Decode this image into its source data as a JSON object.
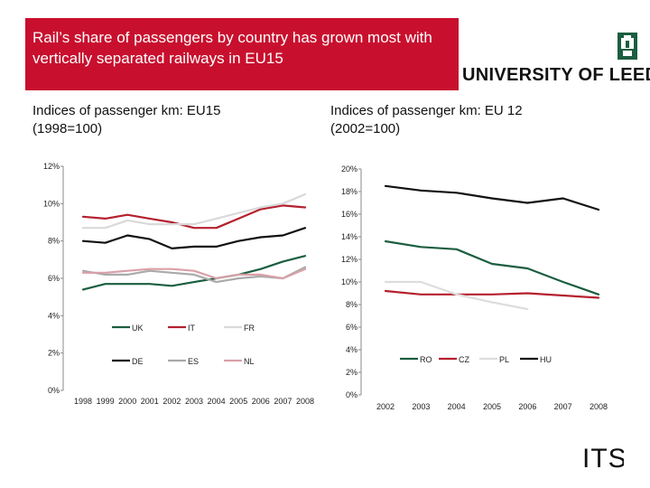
{
  "slide": {
    "title": "Rail’s share of passengers by country has grown most  with vertically separated railways in EU15",
    "logo_text": "UNIVERSITY OF LEEDS",
    "footer_logo": "ITS"
  },
  "chart_data": [
    {
      "type": "line",
      "title_line1": "Indices of passenger km: EU15",
      "title_line2": "(1998=100)",
      "x": [
        "1998",
        "1999",
        "2000",
        "2001",
        "2002",
        "2003",
        "2004",
        "2005",
        "2006",
        "2007",
        "2008"
      ],
      "ylim": [
        0,
        12
      ],
      "yticks": [
        "0%",
        "2%",
        "4%",
        "6%",
        "8%",
        "10%",
        "12%"
      ],
      "ytick_values": [
        0,
        2,
        4,
        6,
        8,
        10,
        12
      ],
      "grid": false,
      "legend_placement": "center-bottom",
      "series": [
        {
          "name": "UK",
          "color": "#1b5e40",
          "values": [
            5.4,
            5.7,
            5.7,
            5.7,
            5.6,
            5.8,
            6.0,
            6.2,
            6.5,
            6.9,
            7.2
          ]
        },
        {
          "name": "IT",
          "color": "#b5202e",
          "values": [
            9.3,
            9.2,
            9.4,
            9.2,
            9.0,
            8.7,
            8.7,
            9.2,
            9.7,
            9.9,
            9.8
          ]
        },
        {
          "name": "FR",
          "color": "#d9d9d9",
          "values": [
            8.7,
            8.7,
            9.1,
            8.9,
            8.9,
            8.9,
            9.2,
            9.5,
            9.8,
            10.0,
            10.5
          ]
        },
        {
          "name": "DE",
          "color": "#111111",
          "values": [
            8.0,
            7.9,
            8.3,
            8.1,
            7.6,
            7.7,
            7.7,
            8.0,
            8.2,
            8.3,
            8.7
          ]
        },
        {
          "name": "ES",
          "color": "#aaaaaa",
          "values": [
            6.4,
            6.2,
            6.2,
            6.4,
            6.3,
            6.2,
            5.8,
            6.0,
            6.1,
            6.0,
            6.6
          ]
        },
        {
          "name": "NL",
          "color": "#d9a0a8",
          "values": [
            6.3,
            6.3,
            6.4,
            6.5,
            6.5,
            6.4,
            6.0,
            6.2,
            6.2,
            6.0,
            6.5
          ]
        }
      ]
    },
    {
      "type": "line",
      "title_line1": "Indices of passenger km: EU 12",
      "title_line2": "(2002=100)",
      "x": [
        "2002",
        "2003",
        "2004",
        "2005",
        "2006",
        "2007",
        "2008"
      ],
      "ylim": [
        0,
        20
      ],
      "yticks": [
        "0%",
        "2%",
        "4%",
        "6%",
        "8%",
        "10%",
        "12%",
        "14%",
        "16%",
        "18%",
        "20%"
      ],
      "ytick_values": [
        0,
        2,
        4,
        6,
        8,
        10,
        12,
        14,
        16,
        18,
        20
      ],
      "grid": false,
      "legend_placement": "center-bottom",
      "series": [
        {
          "name": "RO",
          "color": "#1b5e40",
          "values": [
            13.6,
            13.1,
            12.9,
            11.6,
            11.2,
            10.0,
            8.9
          ]
        },
        {
          "name": "CZ",
          "color": "#b5202e",
          "values": [
            9.2,
            8.9,
            8.9,
            8.9,
            9.0,
            8.8,
            8.6
          ]
        },
        {
          "name": "PL",
          "color": "#dddddd",
          "values": [
            10.0,
            10.0,
            8.9,
            8.2,
            7.6,
            null,
            null
          ]
        },
        {
          "name": "HU",
          "color": "#111111",
          "values": [
            18.5,
            18.1,
            17.9,
            17.4,
            17.0,
            17.4,
            16.4
          ]
        }
      ]
    }
  ]
}
